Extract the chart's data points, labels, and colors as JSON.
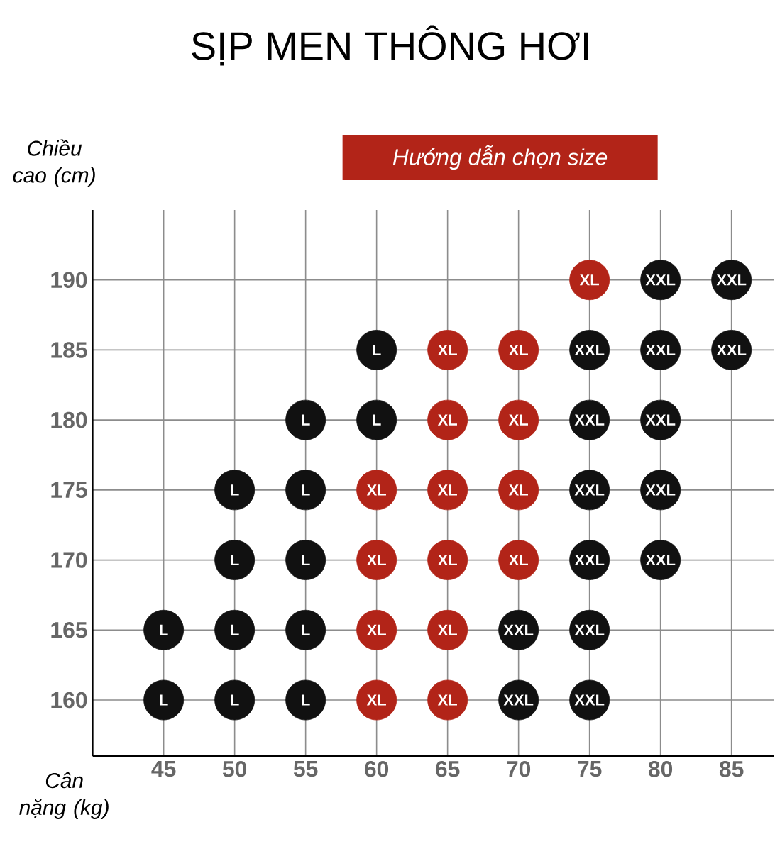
{
  "chart_data": {
    "type": "scatter",
    "title": "SỊP MEN THÔNG HƠI",
    "xlabel": "Cân nặng (kg)",
    "ylabel": "Chiều cao (cm)",
    "annotations": [
      "Hướng dẫn chọn size"
    ],
    "xlim": [
      40,
      88
    ],
    "ylim": [
      156,
      195
    ],
    "xticks": [
      45,
      50,
      55,
      60,
      65,
      70,
      75,
      80,
      85
    ],
    "yticks": [
      160,
      165,
      170,
      175,
      180,
      185,
      190
    ],
    "grid": true,
    "marker": "circle",
    "series": [
      {
        "color": "#111111",
        "x": [
          45,
          50,
          55,
          45,
          50,
          55,
          50,
          55,
          50,
          55,
          55,
          60,
          60
        ],
        "values": [
          160,
          160,
          160,
          165,
          165,
          165,
          170,
          170,
          175,
          175,
          180,
          180,
          185
        ],
        "value_labels": [
          "L",
          "L",
          "L",
          "L",
          "L",
          "L",
          "L",
          "L",
          "L",
          "L",
          "L",
          "L",
          "L"
        ]
      },
      {
        "color": "#b22418",
        "x": [
          60,
          65,
          60,
          65,
          60,
          65,
          70,
          60,
          65,
          70,
          65,
          70,
          65,
          70,
          75
        ],
        "values": [
          160,
          160,
          165,
          165,
          170,
          170,
          170,
          175,
          175,
          175,
          180,
          180,
          185,
          185,
          190
        ],
        "value_labels": [
          "XL",
          "XL",
          "XL",
          "XL",
          "XL",
          "XL",
          "XL",
          "XL",
          "XL",
          "XL",
          "XL",
          "XL",
          "XL",
          "XL",
          "XL"
        ]
      },
      {
        "color": "#111111",
        "x": [
          70,
          75,
          70,
          75,
          75,
          80,
          75,
          80,
          75,
          80,
          75,
          80,
          85,
          80,
          85
        ],
        "values": [
          160,
          160,
          165,
          165,
          170,
          170,
          175,
          175,
          180,
          180,
          185,
          185,
          185,
          190,
          190
        ],
        "value_labels": [
          "XXL",
          "XXL",
          "XXL",
          "XXL",
          "XXL",
          "XXL",
          "XXL",
          "XXL",
          "XXL",
          "XXL",
          "XXL",
          "XXL",
          "XXL",
          "XXL",
          "XXL"
        ]
      }
    ]
  }
}
